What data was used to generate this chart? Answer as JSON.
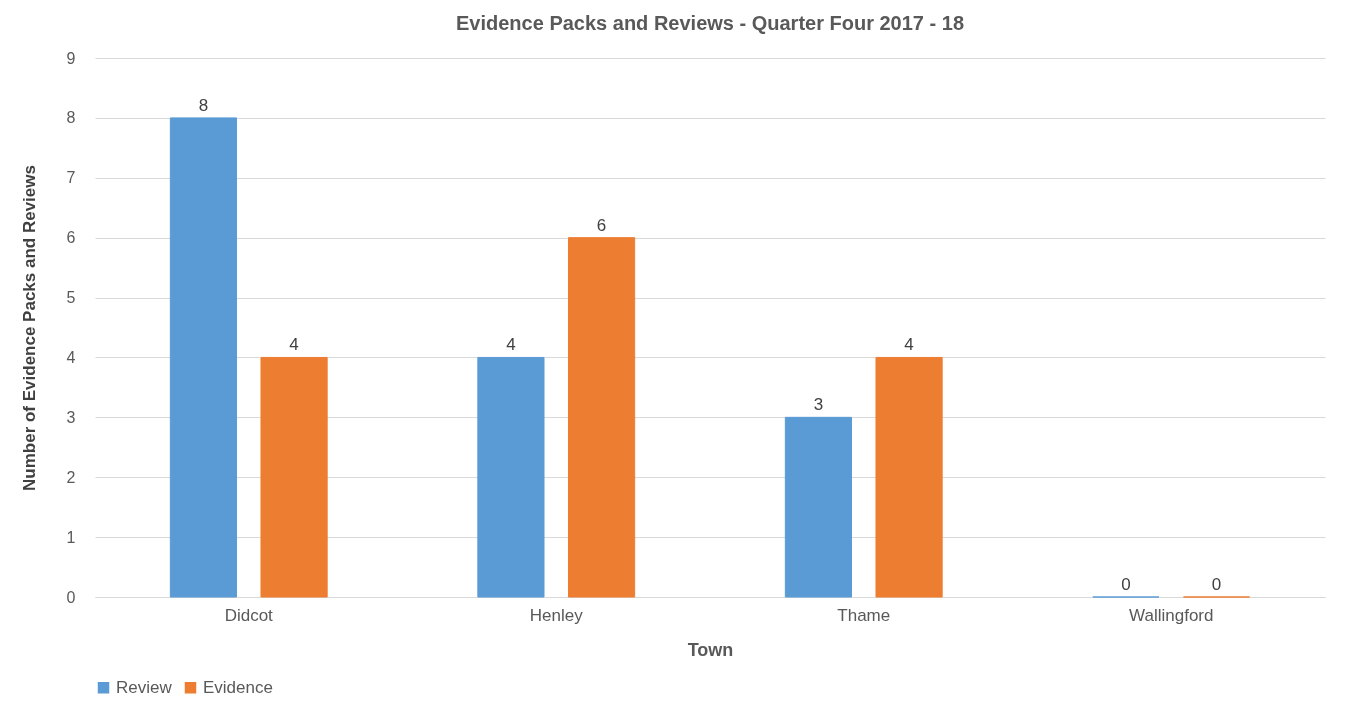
{
  "chart_data": {
    "type": "bar",
    "title": "Evidence Packs and Reviews - Quarter Four 2017 - 18",
    "xlabel": "Town",
    "ylabel": "Number of Evidence Packs and Reviews",
    "categories": [
      "Didcot",
      "Henley",
      "Thame",
      "Wallingford"
    ],
    "series": [
      {
        "name": "Review",
        "color": "#5b9bd5",
        "values": [
          8,
          4,
          3,
          0
        ]
      },
      {
        "name": "Evidence",
        "color": "#ed7d31",
        "values": [
          4,
          6,
          4,
          0
        ]
      }
    ],
    "ylim": [
      0,
      9
    ],
    "yticks": [
      0,
      1,
      2,
      3,
      4,
      5,
      6,
      7,
      8,
      9
    ],
    "grid": "y",
    "legend": "bottom",
    "data_labels": true
  }
}
